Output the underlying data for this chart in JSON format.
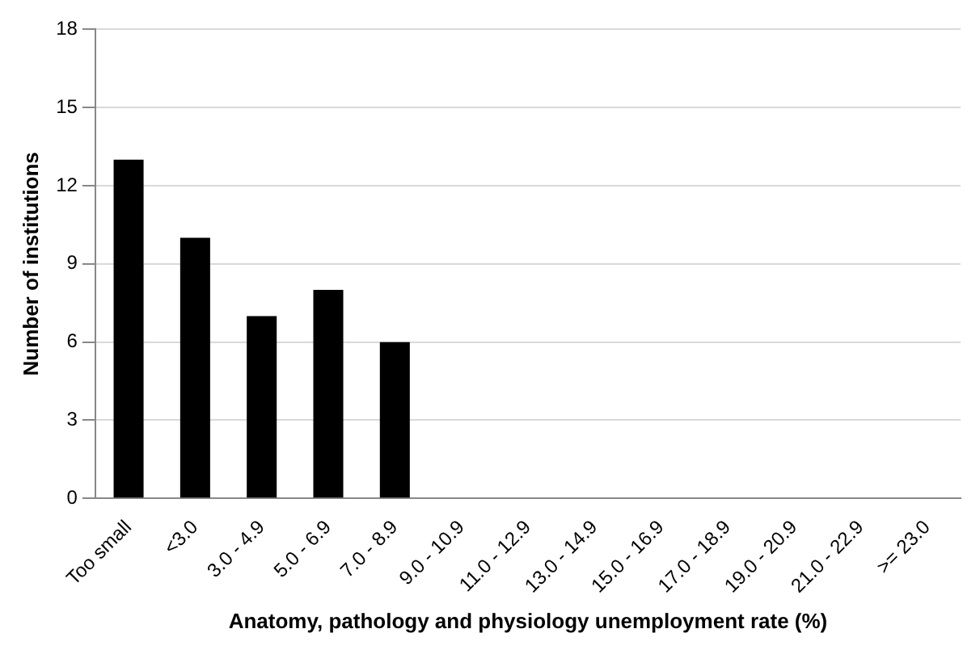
{
  "chart_data": {
    "type": "bar",
    "xlabel": "Anatomy, pathology and physiology unemployment rate (%)",
    "ylabel": "Number of institutions",
    "categories": [
      "Too small",
      "<3.0",
      "3.0 - 4.9",
      "5.0 - 6.9",
      "7.0 - 8.9",
      "9.0 - 10.9",
      "11.0 - 12.9",
      "13.0 - 14.9",
      "15.0 - 16.9",
      "17.0 - 18.9",
      "19.0 - 20.9",
      "21.0 - 22.9",
      ">= 23.0"
    ],
    "values": [
      13,
      10,
      7,
      8,
      6,
      0,
      0,
      0,
      0,
      0,
      0,
      0,
      0
    ],
    "color": "#000000",
    "ylim": [
      0,
      18
    ],
    "yticks": [
      0,
      3,
      6,
      9,
      12,
      15,
      18
    ],
    "grid": "y",
    "legend": false
  }
}
